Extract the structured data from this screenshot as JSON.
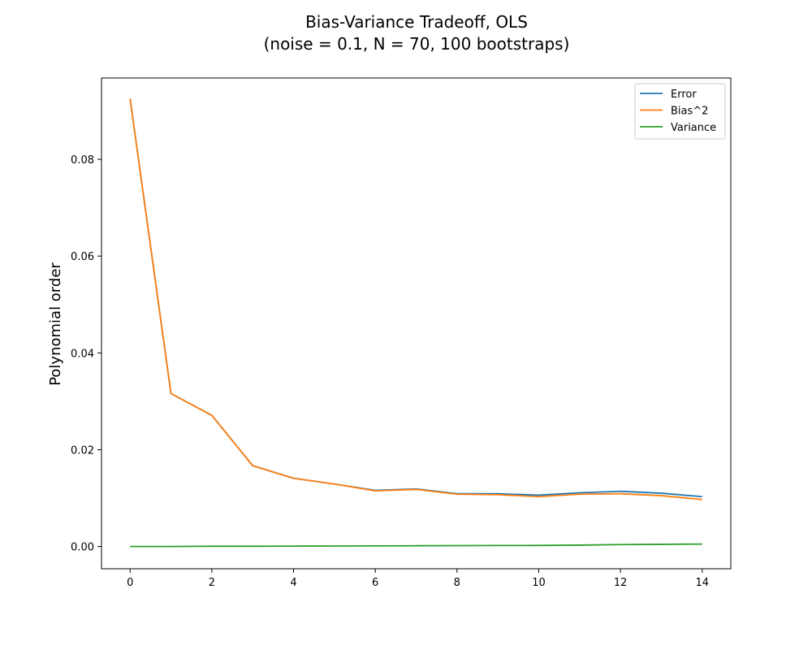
{
  "chart_data": {
    "type": "line",
    "title": "Bias-Variance Tradeoff, OLS",
    "subtitle": "(noise = 0.1, N = 70, 100 bootstraps)",
    "xlabel": "",
    "ylabel": "Polynomial order",
    "x": [
      0,
      1,
      2,
      3,
      4,
      5,
      6,
      7,
      8,
      9,
      10,
      11,
      12,
      13,
      14
    ],
    "xlim": [
      -0.7,
      14.7
    ],
    "ylim": [
      -0.0046,
      0.0968
    ],
    "x_ticks": [
      0,
      2,
      4,
      6,
      8,
      10,
      12,
      14
    ],
    "x_tick_labels": [
      "0",
      "2",
      "4",
      "6",
      "8",
      "10",
      "12",
      "14"
    ],
    "y_ticks": [
      0.0,
      0.02,
      0.04,
      0.06,
      0.08
    ],
    "y_tick_labels": [
      "0.00",
      "0.02",
      "0.04",
      "0.06",
      "0.08"
    ],
    "grid": false,
    "legend_position": "top-right",
    "series": [
      {
        "name": "Error",
        "color": "#1f77b4",
        "values": [
          0.0925,
          0.0316,
          0.0271,
          0.0167,
          0.0141,
          0.0129,
          0.0116,
          0.0119,
          0.0109,
          0.0109,
          0.0106,
          0.0111,
          0.0114,
          0.011,
          0.0103
        ]
      },
      {
        "name": "Bias^2",
        "color": "#ff7f0e",
        "values": [
          0.0925,
          0.0316,
          0.0271,
          0.0167,
          0.0141,
          0.0129,
          0.0115,
          0.0118,
          0.0108,
          0.0107,
          0.0103,
          0.0108,
          0.0109,
          0.0105,
          0.0097
        ]
      },
      {
        "name": "Variance",
        "color": "#2ca02c",
        "values": [
          0.0,
          0.0,
          5e-05,
          5e-05,
          8e-05,
          0.0001,
          0.00012,
          0.00015,
          0.00018,
          0.0002,
          0.00022,
          0.00028,
          0.0004,
          0.00045,
          0.0005
        ]
      }
    ]
  }
}
